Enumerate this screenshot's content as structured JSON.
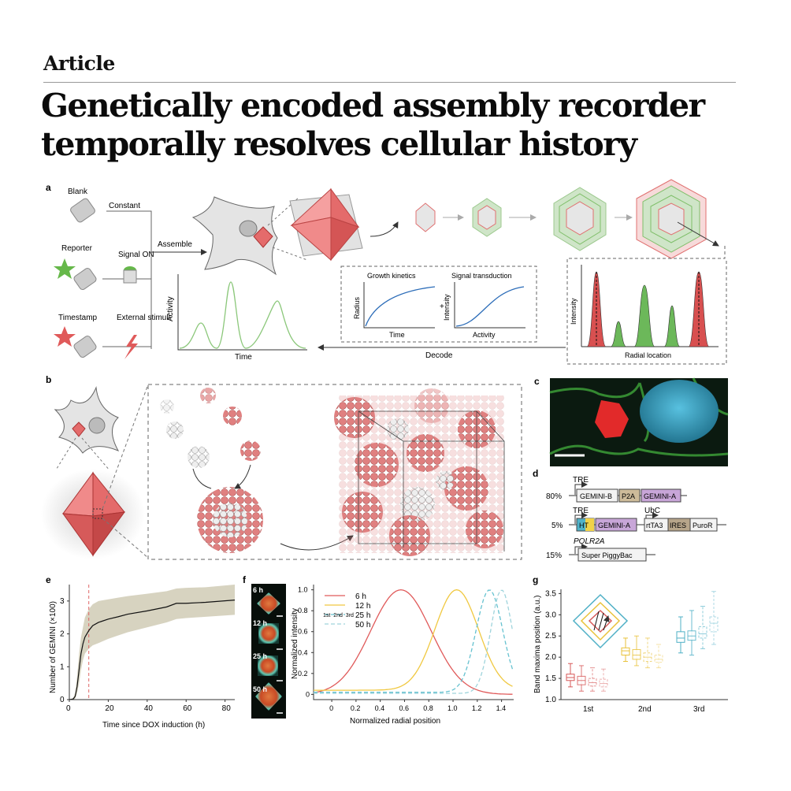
{
  "header": {
    "kicker": "Article",
    "title_line1": "Genetically encoded assembly recorder",
    "title_line2": "temporally resolves cellular history"
  },
  "panel_a": {
    "letter": "a",
    "labels": [
      "Blank",
      "Reporter",
      "Timestamp"
    ],
    "signal_labels": [
      "Constant",
      "Signal ON",
      "External stimuli"
    ],
    "assemble": "Assemble",
    "decode": "Decode",
    "activity_axis": "Activity",
    "time_axis": "Time",
    "growth_kinetics": "Growth kinetics",
    "signal_transduction": "Signal transduction",
    "radius": "Radius",
    "intensity": "Intensity",
    "activity": "Activity",
    "time_small": "Time",
    "plus": "+",
    "radial_location": "Radial location"
  },
  "panel_b": {
    "letter": "b"
  },
  "panel_c": {
    "letter": "c"
  },
  "panel_d": {
    "letter": "d",
    "rows": [
      {
        "pct": "80%",
        "promoter": "TRE",
        "parts": [
          "GEMINI-B",
          "P2A",
          "GEMINI-A"
        ]
      },
      {
        "pct": "5%",
        "promoter": "TRE",
        "parts": [
          "HT",
          "GEMINI-A"
        ],
        "promoter2": "UbC",
        "parts2": [
          "rtTA3",
          "IRES",
          "PuroR"
        ]
      },
      {
        "pct": "15%",
        "promoter": "POLR2A",
        "parts": [
          "Super PiggyBac"
        ]
      }
    ],
    "colors": {
      "gemini_b": "#f3f3f3",
      "p2a": "#cdbb9a",
      "gemini_a": "#c8a6d8",
      "ht": "#4fb2c8",
      "ires": "#b7a58a"
    }
  },
  "panel_e": {
    "letter": "e"
  },
  "panel_f": {
    "letter": "f",
    "image_labels": [
      "6 h",
      "12 h",
      "25 h",
      "50 h"
    ],
    "band_labels": "1st  2nd  3rd"
  },
  "panel_g": {
    "letter": "g"
  },
  "chart_data": [
    {
      "type": "line",
      "title": "",
      "xlabel": "Time since DOX induction (h)",
      "ylabel": "Number of GEMINI (×100)",
      "xlim": [
        0,
        85
      ],
      "ylim": [
        0,
        3.5
      ],
      "xticks": [
        "0",
        "20",
        "40",
        "60",
        "80"
      ],
      "yticks": [
        "0",
        "1",
        "2",
        "3"
      ],
      "x": [
        0,
        2,
        3,
        4,
        5,
        6,
        7,
        8,
        10,
        12,
        15,
        20,
        25,
        30,
        40,
        50,
        55,
        60,
        70,
        85
      ],
      "y": [
        0,
        0.02,
        0.1,
        0.4,
        0.9,
        1.4,
        1.7,
        1.9,
        2.1,
        2.25,
        2.35,
        2.45,
        2.52,
        2.6,
        2.7,
        2.82,
        2.93,
        2.93,
        2.96,
        3.03
      ],
      "upper": [
        0,
        0.05,
        0.2,
        0.7,
        1.4,
        1.9,
        2.2,
        2.5,
        2.75,
        2.9,
        3.0,
        3.05,
        3.1,
        3.15,
        3.22,
        3.3,
        3.38,
        3.4,
        3.42,
        3.5
      ],
      "lower": [
        0,
        0,
        0.03,
        0.2,
        0.5,
        0.9,
        1.2,
        1.4,
        1.55,
        1.65,
        1.72,
        1.85,
        1.95,
        2.05,
        2.2,
        2.35,
        2.45,
        2.48,
        2.52,
        2.58
      ],
      "vline": 10,
      "colors": {
        "line": "#111111",
        "band": "#d7d3c0",
        "vline": "#e06666"
      }
    },
    {
      "type": "line",
      "xlabel": "Normalized radial position",
      "ylabel": "Normalized intensity",
      "xlim": [
        -0.15,
        1.5
      ],
      "ylim": [
        -0.05,
        1.05
      ],
      "xticks": [
        "0",
        "0.2",
        "0.4",
        "0.6",
        "0.8",
        "1.0",
        "1.2",
        "1.4"
      ],
      "yticks": [
        "0",
        "0.2",
        "0.4",
        "0.6",
        "0.8",
        "1.0"
      ],
      "series": [
        {
          "name": "6 h",
          "color": "#e05a5a",
          "style": "solid",
          "peak": 0.57,
          "width": 0.25,
          "base": 0.0
        },
        {
          "name": "12 h",
          "color": "#f0c840",
          "style": "solid",
          "peak": 1.03,
          "width": 0.18,
          "base": 0.04
        },
        {
          "name": "25 h",
          "color": "#66c2d0",
          "style": "dash",
          "peak": 1.3,
          "width": 0.11,
          "base": 0.02
        },
        {
          "name": "50 h",
          "color": "#9fd4dc",
          "style": "dash",
          "peak": 1.4,
          "width": 0.09,
          "base": 0.01
        }
      ]
    },
    {
      "type": "box",
      "xlabel": "",
      "ylabel": "Band maxima position (a.u.)",
      "categories": [
        "1st",
        "2nd",
        "3rd"
      ],
      "ylim": [
        1.0,
        3.6
      ],
      "yticks": [
        "1.0",
        "1.5",
        "2.0",
        "2.5",
        "3.0",
        "3.5"
      ],
      "colors": [
        "#d75a5a",
        "#e9c23a",
        "#4fb0c6"
      ],
      "groups": [
        {
          "category": "1st",
          "boxes": [
            [
              1.3,
              1.45,
              1.52,
              1.6,
              1.85
            ],
            [
              1.2,
              1.35,
              1.45,
              1.55,
              1.8
            ],
            [
              1.2,
              1.32,
              1.4,
              1.5,
              1.75
            ],
            [
              1.2,
              1.3,
              1.38,
              1.48,
              1.72
            ]
          ]
        },
        {
          "category": "2nd",
          "boxes": [
            [
              1.9,
              2.05,
              2.15,
              2.22,
              2.45
            ],
            [
              1.8,
              1.95,
              2.05,
              2.18,
              2.5
            ],
            [
              1.75,
              1.9,
              2.0,
              2.1,
              2.45
            ],
            [
              1.75,
              1.88,
              1.95,
              2.05,
              2.3
            ]
          ]
        },
        {
          "category": "3rd",
          "boxes": [
            [
              2.1,
              2.35,
              2.45,
              2.6,
              2.95
            ],
            [
              2.05,
              2.4,
              2.5,
              2.62,
              3.1
            ],
            [
              2.2,
              2.45,
              2.55,
              2.72,
              3.2
            ],
            [
              2.3,
              2.6,
              2.8,
              2.95,
              3.55
            ]
          ]
        }
      ]
    }
  ]
}
